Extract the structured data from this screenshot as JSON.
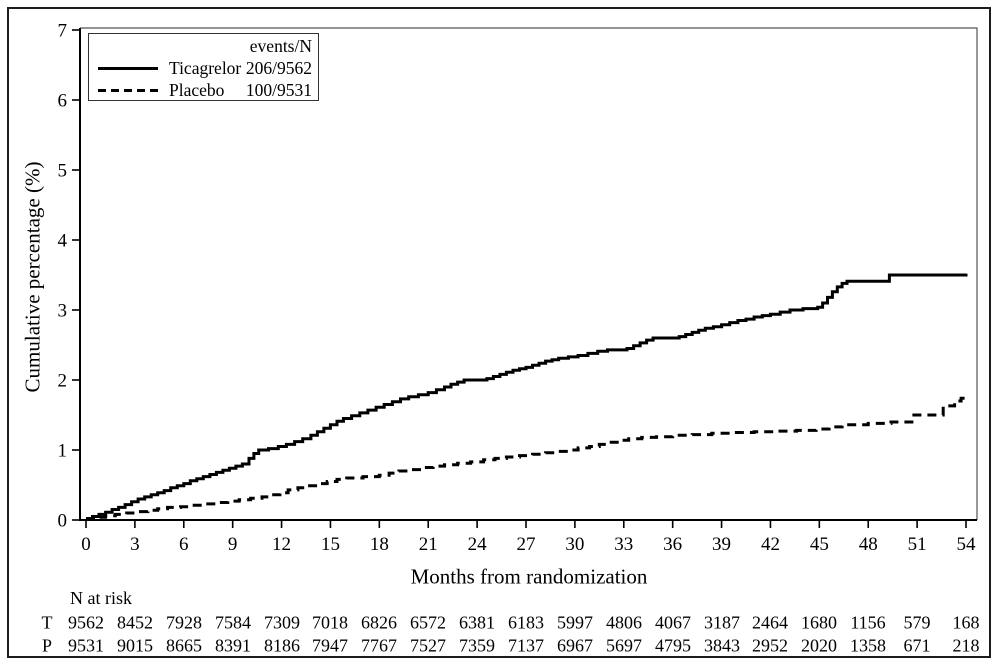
{
  "figure": {
    "background": "#ffffff",
    "border_color": "#1c1c1c",
    "ink_color": "#000000"
  },
  "chart_data": {
    "type": "line",
    "subtype": "cumulative-incidence-step",
    "title": "",
    "xlabel": "Months from randomization",
    "ylabel": "Cumulative percentage (%)",
    "xlim": [
      0,
      54
    ],
    "ylim": [
      0,
      7
    ],
    "xticks": [
      0,
      3,
      6,
      9,
      12,
      15,
      18,
      21,
      24,
      27,
      30,
      33,
      36,
      39,
      42,
      45,
      48,
      51,
      54
    ],
    "yticks": [
      0,
      1,
      2,
      3,
      4,
      5,
      6,
      7
    ],
    "grid": false,
    "legend": {
      "position": "top-left",
      "header": "events/N"
    },
    "series": [
      {
        "name": "Ticagrelor",
        "events_n": "206/9562",
        "line_style": "solid",
        "color": "#000000",
        "points": [
          [
            0,
            0.02
          ],
          [
            0.4,
            0.05
          ],
          [
            0.8,
            0.08
          ],
          [
            1.2,
            0.11
          ],
          [
            1.6,
            0.15
          ],
          [
            2,
            0.18
          ],
          [
            2.4,
            0.22
          ],
          [
            2.8,
            0.26
          ],
          [
            3.2,
            0.3
          ],
          [
            3.6,
            0.33
          ],
          [
            4,
            0.36
          ],
          [
            4.4,
            0.39
          ],
          [
            4.8,
            0.42
          ],
          [
            5.2,
            0.46
          ],
          [
            5.6,
            0.49
          ],
          [
            6,
            0.52
          ],
          [
            6.4,
            0.56
          ],
          [
            6.8,
            0.59
          ],
          [
            7.2,
            0.62
          ],
          [
            7.6,
            0.65
          ],
          [
            8,
            0.68
          ],
          [
            8.4,
            0.71
          ],
          [
            8.8,
            0.74
          ],
          [
            9.2,
            0.77
          ],
          [
            9.6,
            0.8
          ],
          [
            10,
            0.88
          ],
          [
            10.3,
            0.95
          ],
          [
            10.6,
            1.0
          ],
          [
            11.2,
            1.02
          ],
          [
            11.8,
            1.05
          ],
          [
            12.3,
            1.08
          ],
          [
            12.8,
            1.12
          ],
          [
            13.3,
            1.16
          ],
          [
            13.8,
            1.21
          ],
          [
            14.2,
            1.26
          ],
          [
            14.6,
            1.31
          ],
          [
            15,
            1.36
          ],
          [
            15.4,
            1.41
          ],
          [
            15.8,
            1.45
          ],
          [
            16.3,
            1.49
          ],
          [
            16.8,
            1.53
          ],
          [
            17.3,
            1.57
          ],
          [
            17.8,
            1.61
          ],
          [
            18.3,
            1.65
          ],
          [
            18.8,
            1.69
          ],
          [
            19.3,
            1.73
          ],
          [
            19.8,
            1.76
          ],
          [
            20.4,
            1.79
          ],
          [
            21,
            1.82
          ],
          [
            21.5,
            1.86
          ],
          [
            22,
            1.9
          ],
          [
            22.4,
            1.94
          ],
          [
            22.8,
            1.97
          ],
          [
            23.2,
            2.0
          ],
          [
            24.6,
            2.02
          ],
          [
            25,
            2.05
          ],
          [
            25.4,
            2.08
          ],
          [
            25.8,
            2.11
          ],
          [
            26.2,
            2.14
          ],
          [
            26.6,
            2.16
          ],
          [
            27,
            2.18
          ],
          [
            27.4,
            2.21
          ],
          [
            27.8,
            2.24
          ],
          [
            28.2,
            2.27
          ],
          [
            28.6,
            2.29
          ],
          [
            29,
            2.31
          ],
          [
            29.6,
            2.33
          ],
          [
            30.2,
            2.35
          ],
          [
            30.8,
            2.38
          ],
          [
            31.4,
            2.41
          ],
          [
            32,
            2.43
          ],
          [
            33.2,
            2.45
          ],
          [
            33.6,
            2.49
          ],
          [
            34,
            2.53
          ],
          [
            34.4,
            2.57
          ],
          [
            34.8,
            2.6
          ],
          [
            36.4,
            2.62
          ],
          [
            36.8,
            2.65
          ],
          [
            37.2,
            2.68
          ],
          [
            37.6,
            2.71
          ],
          [
            38,
            2.74
          ],
          [
            38.5,
            2.76
          ],
          [
            39,
            2.79
          ],
          [
            39.5,
            2.82
          ],
          [
            40,
            2.85
          ],
          [
            40.5,
            2.87
          ],
          [
            41,
            2.9
          ],
          [
            41.5,
            2.92
          ],
          [
            42,
            2.94
          ],
          [
            42.6,
            2.97
          ],
          [
            43.2,
            3.0
          ],
          [
            44,
            3.02
          ],
          [
            44.9,
            3.04
          ],
          [
            45.2,
            3.1
          ],
          [
            45.5,
            3.18
          ],
          [
            45.8,
            3.26
          ],
          [
            46.1,
            3.33
          ],
          [
            46.4,
            3.38
          ],
          [
            46.7,
            3.41
          ],
          [
            49.3,
            3.5
          ],
          [
            54,
            3.52
          ]
        ]
      },
      {
        "name": "Placebo",
        "events_n": "100/9531",
        "line_style": "dashed",
        "color": "#000000",
        "points": [
          [
            0,
            0.02
          ],
          [
            0.6,
            0.04
          ],
          [
            1.2,
            0.06
          ],
          [
            1.8,
            0.08
          ],
          [
            2.5,
            0.1
          ],
          [
            3.2,
            0.12
          ],
          [
            3.8,
            0.14
          ],
          [
            4.4,
            0.16
          ],
          [
            5,
            0.18
          ],
          [
            5.8,
            0.19
          ],
          [
            6.5,
            0.21
          ],
          [
            7.2,
            0.23
          ],
          [
            8,
            0.25
          ],
          [
            8.7,
            0.27
          ],
          [
            9.4,
            0.29
          ],
          [
            10.1,
            0.31
          ],
          [
            10.8,
            0.33
          ],
          [
            11.4,
            0.36
          ],
          [
            11.9,
            0.39
          ],
          [
            12.4,
            0.43
          ],
          [
            13,
            0.46
          ],
          [
            13.6,
            0.49
          ],
          [
            14.2,
            0.52
          ],
          [
            14.8,
            0.55
          ],
          [
            15.4,
            0.58
          ],
          [
            16,
            0.6
          ],
          [
            17,
            0.62
          ],
          [
            18,
            0.64
          ],
          [
            18.6,
            0.67
          ],
          [
            19.2,
            0.7
          ],
          [
            19.9,
            0.72
          ],
          [
            20.6,
            0.75
          ],
          [
            21.3,
            0.77
          ],
          [
            22,
            0.79
          ],
          [
            22.8,
            0.81
          ],
          [
            23.6,
            0.83
          ],
          [
            24.4,
            0.86
          ],
          [
            25.1,
            0.88
          ],
          [
            25.8,
            0.9
          ],
          [
            26.6,
            0.92
          ],
          [
            27.4,
            0.94
          ],
          [
            28.2,
            0.96
          ],
          [
            29,
            0.98
          ],
          [
            29.6,
            1.0
          ],
          [
            30.2,
            1.03
          ],
          [
            30.9,
            1.05
          ],
          [
            31.5,
            1.08
          ],
          [
            32.1,
            1.11
          ],
          [
            32.7,
            1.14
          ],
          [
            33.3,
            1.16
          ],
          [
            34.1,
            1.18
          ],
          [
            35,
            1.19
          ],
          [
            36,
            1.21
          ],
          [
            37.2,
            1.22
          ],
          [
            38.4,
            1.24
          ],
          [
            39.6,
            1.25
          ],
          [
            41,
            1.26
          ],
          [
            42.4,
            1.27
          ],
          [
            43.6,
            1.28
          ],
          [
            44.8,
            1.3
          ],
          [
            45.6,
            1.33
          ],
          [
            46.4,
            1.36
          ],
          [
            48,
            1.38
          ],
          [
            49.4,
            1.4
          ],
          [
            50.8,
            1.5
          ],
          [
            52.6,
            1.63
          ],
          [
            53.3,
            1.7
          ],
          [
            53.7,
            1.74
          ],
          [
            54,
            1.76
          ]
        ]
      }
    ]
  },
  "risk_table": {
    "title": "N at risk",
    "months": [
      0,
      3,
      6,
      9,
      12,
      15,
      18,
      21,
      24,
      27,
      30,
      33,
      36,
      39,
      42,
      45,
      48,
      51,
      54
    ],
    "rows": [
      {
        "label": "T",
        "values": [
          "9562",
          "8452",
          "7928",
          "7584",
          "7309",
          "7018",
          "6826",
          "6572",
          "6381",
          "6183",
          "5997",
          "4806",
          "4067",
          "3187",
          "2464",
          "1680",
          "1156",
          "579",
          "168"
        ]
      },
      {
        "label": "P",
        "values": [
          "9531",
          "9015",
          "8665",
          "8391",
          "8186",
          "7947",
          "7767",
          "7527",
          "7359",
          "7137",
          "6967",
          "5697",
          "4795",
          "3843",
          "2952",
          "2020",
          "1358",
          "671",
          "218"
        ]
      }
    ]
  }
}
